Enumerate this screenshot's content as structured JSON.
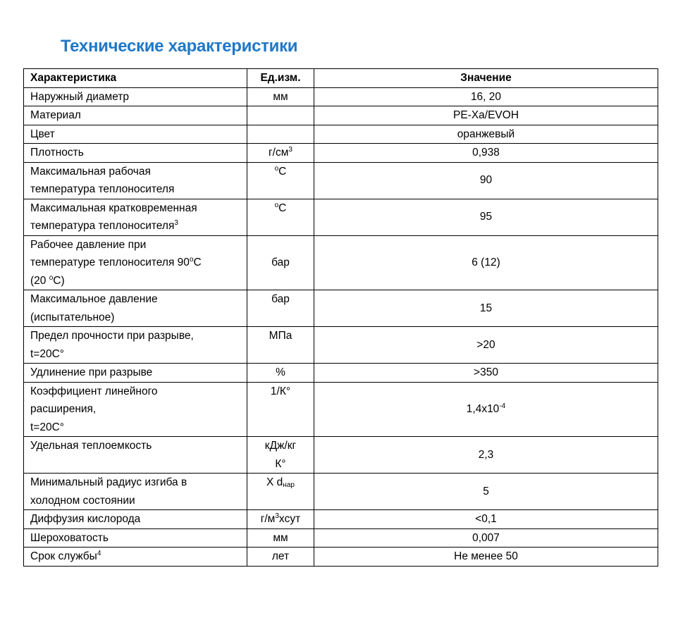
{
  "title": "Технические характеристики",
  "headers": [
    "Характеристика",
    "Ед.изм.",
    "Значение"
  ],
  "rows": [
    {
      "name": [
        [
          {
            "t": "Наружный диаметр"
          }
        ]
      ],
      "unit": [
        [
          {
            "t": "мм"
          }
        ]
      ],
      "value": [
        [
          {
            "t": "16, 20"
          }
        ]
      ]
    },
    {
      "name": [
        [
          {
            "t": "Материал"
          }
        ]
      ],
      "unit": [],
      "value": [
        [
          {
            "t": "PE-Xa/EVOH"
          }
        ]
      ]
    },
    {
      "name": [
        [
          {
            "t": "Цвет"
          }
        ]
      ],
      "unit": [],
      "value": [
        [
          {
            "t": "оранжевый"
          }
        ]
      ]
    },
    {
      "name": [
        [
          {
            "t": "Плотность"
          }
        ]
      ],
      "unit": [
        [
          {
            "t": "г/см"
          },
          {
            "sup": "3"
          }
        ]
      ],
      "value": [
        [
          {
            "t": "0,938"
          }
        ]
      ]
    },
    {
      "name": [
        [
          {
            "t": "Максимальная рабочая"
          }
        ],
        [
          {
            "t": "температура теплоносителя"
          }
        ]
      ],
      "unit": [
        [
          {
            "sup": "о"
          },
          {
            "t": "С"
          }
        ]
      ],
      "value": [
        [
          {
            "t": "90"
          }
        ]
      ]
    },
    {
      "name": [
        [
          {
            "t": "Максимальная кратковременная"
          }
        ],
        [
          {
            "t": "температура теплоносителя"
          },
          {
            "sup": "3"
          }
        ]
      ],
      "unit": [
        [
          {
            "sup": "о"
          },
          {
            "t": "С"
          }
        ]
      ],
      "value": [
        [
          {
            "t": "95"
          }
        ]
      ]
    },
    {
      "name": [
        [
          {
            "t": "Рабочее давление при"
          }
        ],
        [
          {
            "t": "температуре теплоносителя 90"
          },
          {
            "sup": "о"
          },
          {
            "t": "С"
          }
        ],
        [
          {
            "t": "(20 "
          },
          {
            "sup": "о"
          },
          {
            "t": "С)"
          }
        ]
      ],
      "unit": [
        [
          {
            "t": ""
          }
        ],
        [
          {
            "t": "бар"
          }
        ]
      ],
      "value": [
        [
          {
            "t": "6 (12)"
          }
        ]
      ]
    },
    {
      "name": [
        [
          {
            "t": "Максимальное давление"
          }
        ],
        [
          {
            "t": "(испытательное)"
          }
        ]
      ],
      "unit": [
        [
          {
            "t": "бар"
          }
        ]
      ],
      "value": [
        [
          {
            "t": "15"
          }
        ]
      ]
    },
    {
      "name": [
        [
          {
            "t": "Предел прочности при разрыве,"
          }
        ],
        [
          {
            "t": "t=20C°"
          }
        ]
      ],
      "unit": [
        [
          {
            "t": "МПа"
          }
        ]
      ],
      "value": [
        [
          {
            "t": ">20"
          }
        ]
      ]
    },
    {
      "name": [
        [
          {
            "t": "Удлинение при разрыве"
          }
        ]
      ],
      "unit": [
        [
          {
            "t": "%"
          }
        ]
      ],
      "value": [
        [
          {
            "t": ">350"
          }
        ]
      ]
    },
    {
      "name": [
        [
          {
            "t": "Коэффициент линейного"
          }
        ],
        [
          {
            "t": "расширения,"
          }
        ],
        [
          {
            "t": "t=20C°"
          }
        ]
      ],
      "unit": [
        [
          {
            "t": "1/К°"
          }
        ]
      ],
      "value": [
        [
          {
            "t": "1,4x10"
          },
          {
            "sup": "-4"
          }
        ]
      ]
    },
    {
      "name": [
        [
          {
            "t": "Удельная теплоемкость"
          }
        ],
        [
          {
            "t": ""
          }
        ]
      ],
      "unit": [
        [
          {
            "t": "кДж/кг"
          }
        ],
        [
          {
            "t": "К°"
          }
        ]
      ],
      "value": [
        [
          {
            "t": "2,3"
          }
        ]
      ]
    },
    {
      "name": [
        [
          {
            "t": "Минимальный радиус изгиба в"
          }
        ],
        [
          {
            "t": "холодном состоянии"
          }
        ]
      ],
      "unit": [
        [
          {
            "t": "X d"
          },
          {
            "sub": "нар"
          }
        ]
      ],
      "value": [
        [
          {
            "t": "5"
          }
        ]
      ]
    },
    {
      "name": [
        [
          {
            "t": "Диффузия кислорода"
          }
        ]
      ],
      "unit": [
        [
          {
            "t": "г/м"
          },
          {
            "sup": "3"
          },
          {
            "t": "xсут"
          }
        ]
      ],
      "value": [
        [
          {
            "t": "<0,1"
          }
        ]
      ]
    },
    {
      "name": [
        [
          {
            "t": "Шероховатость"
          }
        ]
      ],
      "unit": [
        [
          {
            "t": "мм"
          }
        ]
      ],
      "value": [
        [
          {
            "t": "0,007"
          }
        ]
      ]
    },
    {
      "name": [
        [
          {
            "t": "Срок службы"
          },
          {
            "sup": "4"
          }
        ]
      ],
      "unit": [
        [
          {
            "t": "лет"
          }
        ]
      ],
      "value": [
        [
          {
            "t": "Не менее 50"
          }
        ]
      ]
    }
  ]
}
